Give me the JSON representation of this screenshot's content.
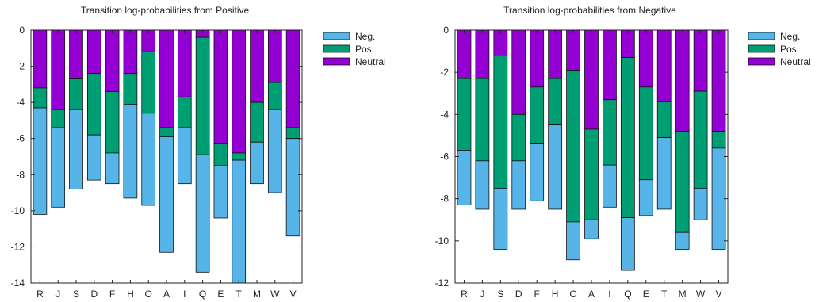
{
  "colors": {
    "neg": "#56b4e9",
    "pos": "#009e73",
    "neutral": "#9400d3",
    "axis": "#222222"
  },
  "chart_data": [
    {
      "type": "bar",
      "stacked": true,
      "title": "Transition log-probabilities from Positive",
      "xlabel": "",
      "ylabel": "",
      "ylim": [
        -14,
        0
      ],
      "yticks": [
        0,
        -2,
        -4,
        -6,
        -8,
        -10,
        -12,
        -14
      ],
      "categories": [
        "R",
        "J",
        "S",
        "D",
        "F",
        "H",
        "O",
        "A",
        "I",
        "Q",
        "E",
        "T",
        "M",
        "W",
        "V"
      ],
      "legend": {
        "position": "top-right",
        "entries": [
          "Neg.",
          "Pos.",
          "Neutral"
        ]
      },
      "series": [
        {
          "name": "Neutral",
          "values": [
            -3.2,
            -4.4,
            -2.7,
            -2.4,
            -3.4,
            -2.4,
            -1.2,
            -5.4,
            -3.7,
            -0.4,
            -6.3,
            -6.8,
            -4.0,
            -2.9,
            -5.4
          ]
        },
        {
          "name": "Pos.",
          "values": [
            -1.1,
            -1.0,
            -1.7,
            -3.4,
            -3.4,
            -1.7,
            -3.4,
            -0.5,
            -1.7,
            -6.5,
            -1.2,
            -0.4,
            -2.2,
            -1.5,
            -0.6
          ]
        },
        {
          "name": "Neg.",
          "values": [
            -5.9,
            -4.4,
            -4.4,
            -2.5,
            -1.7,
            -5.2,
            -5.1,
            -6.4,
            -3.1,
            -6.5,
            -2.9,
            -6.9,
            -2.3,
            -4.6,
            -5.4
          ]
        }
      ]
    },
    {
      "type": "bar",
      "stacked": true,
      "title": "Transition log-probabilities from Negative",
      "xlabel": "",
      "ylabel": "",
      "ylim": [
        -12,
        0
      ],
      "yticks": [
        0,
        -2,
        -4,
        -6,
        -8,
        -10,
        -12
      ],
      "categories": [
        "R",
        "J",
        "S",
        "D",
        "F",
        "H",
        "O",
        "A",
        "I",
        "Q",
        "E",
        "T",
        "M",
        "W",
        "V"
      ],
      "legend": {
        "position": "top-right",
        "entries": [
          "Neg.",
          "Pos.",
          "Neutral"
        ]
      },
      "series": [
        {
          "name": "Neutral",
          "values": [
            -2.3,
            -2.3,
            -1.2,
            -4.0,
            -2.7,
            -2.3,
            -1.9,
            -4.7,
            -3.3,
            -1.3,
            -2.7,
            -3.4,
            -4.8,
            -2.9,
            -4.8
          ]
        },
        {
          "name": "Pos.",
          "values": [
            -3.4,
            -3.9,
            -6.3,
            -2.2,
            -2.7,
            -2.2,
            -7.2,
            -4.3,
            -3.1,
            -7.6,
            -4.4,
            -1.7,
            -4.8,
            -4.6,
            -0.8
          ]
        },
        {
          "name": "Neg.",
          "values": [
            -2.6,
            -2.3,
            -2.9,
            -2.3,
            -2.7,
            -4.0,
            -1.8,
            -0.9,
            -2.0,
            -2.5,
            -1.7,
            -3.4,
            -0.8,
            -1.5,
            -4.8
          ]
        }
      ]
    }
  ]
}
